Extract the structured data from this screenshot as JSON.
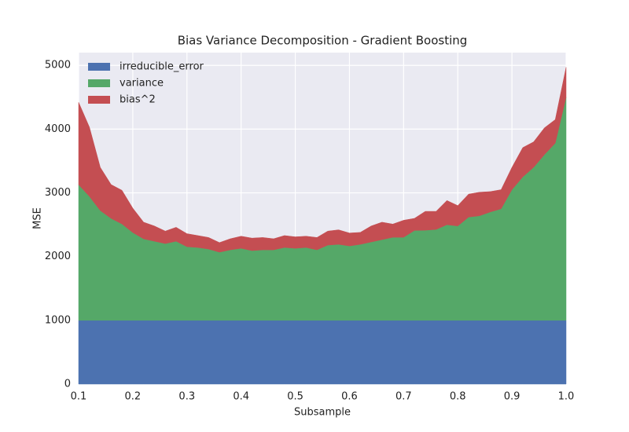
{
  "chart_data": {
    "type": "stacked_area",
    "title": "Bias Variance Decomposition - Gradient Boosting",
    "xlabel": "Subsample",
    "ylabel": "MSE",
    "x": [
      0.1,
      0.12,
      0.14,
      0.16,
      0.18,
      0.2,
      0.22,
      0.24,
      0.26,
      0.28,
      0.3,
      0.32,
      0.34,
      0.36,
      0.38,
      0.4,
      0.42,
      0.44,
      0.46,
      0.48,
      0.5,
      0.52,
      0.54,
      0.56,
      0.58,
      0.6,
      0.62,
      0.64,
      0.66,
      0.68,
      0.7,
      0.72,
      0.74,
      0.76,
      0.78,
      0.8,
      0.82,
      0.84,
      0.86,
      0.88,
      0.9,
      0.92,
      0.94,
      0.96,
      0.98,
      1.0
    ],
    "series": [
      {
        "name": "irreducible_error",
        "color": "#4c72b0",
        "values": [
          1000,
          1000,
          1000,
          1000,
          1000,
          1000,
          1000,
          1000,
          1000,
          1000,
          1000,
          1000,
          1000,
          1000,
          1000,
          1000,
          1000,
          1000,
          1000,
          1000,
          1000,
          1000,
          1000,
          1000,
          1000,
          1000,
          1000,
          1000,
          1000,
          1000,
          1000,
          1000,
          1000,
          1000,
          1000,
          1000,
          1000,
          1000,
          1000,
          1000,
          1000,
          1000,
          1000,
          1000,
          1000,
          1000
        ]
      },
      {
        "name": "variance",
        "color": "#55a868",
        "values": [
          2128,
          1943,
          1722,
          1599,
          1512,
          1377,
          1278,
          1241,
          1204,
          1241,
          1155,
          1143,
          1118,
          1069,
          1106,
          1130,
          1094,
          1106,
          1106,
          1143,
          1130,
          1143,
          1106,
          1180,
          1192,
          1167,
          1192,
          1229,
          1266,
          1303,
          1303,
          1410,
          1414,
          1426,
          1500,
          1480,
          1620,
          1640,
          1700,
          1750,
          2050,
          2250,
          2400,
          2600,
          2780,
          3500
        ]
      },
      {
        "name": "bias^2",
        "color": "#c44e52",
        "values": [
          1292,
          1087,
          678,
          531,
          528,
          383,
          262,
          239,
          196,
          219,
          205,
          187,
          182,
          151,
          174,
          190,
          196,
          194,
          174,
          187,
          180,
          177,
          194,
          220,
          228,
          203,
          188,
          251,
          274,
          207,
          267,
          190,
          296,
          284,
          380,
          320,
          360,
          370,
          320,
          300,
          350,
          460,
          400,
          420,
          370,
          470
        ]
      }
    ],
    "xlim": [
      0.1,
      1.0
    ],
    "ylim": [
      0,
      5200
    ],
    "xticks": [
      0.1,
      0.2,
      0.3,
      0.4,
      0.5,
      0.6,
      0.7,
      0.8,
      0.9,
      {
        "value": 1.0,
        "label": "1.0"
      }
    ],
    "yticks": [
      0,
      1000,
      2000,
      3000,
      4000,
      5000
    ],
    "grid": true,
    "legend": "upper left"
  }
}
